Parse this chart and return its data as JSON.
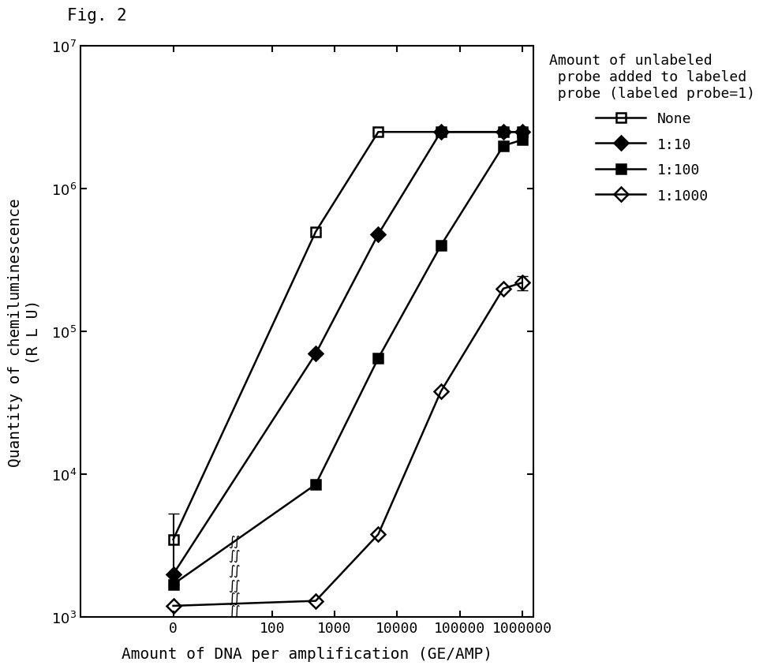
{
  "title": "Fig. 2",
  "xlabel": "Amount of DNA per amplification (GE/AMP)",
  "ylabel_line1": "Quantity of chemiluminescence",
  "ylabel_line2": "(R L U)",
  "series": [
    {
      "name": "None",
      "x": [
        0,
        500,
        5000,
        50000,
        500000,
        1000000
      ],
      "y": [
        3500,
        500000,
        2500000,
        2500000,
        2500000,
        2500000
      ],
      "yerr_lo": [
        1800,
        0,
        0,
        0,
        0,
        0
      ],
      "yerr_hi": [
        1800,
        0,
        0,
        0,
        0,
        0
      ],
      "marker": "s",
      "fillstyle": "none",
      "label": "None"
    },
    {
      "name": "1:10",
      "x": [
        0,
        500,
        5000,
        50000,
        500000,
        1000000
      ],
      "y": [
        2000,
        70000,
        480000,
        2500000,
        2500000,
        2500000
      ],
      "yerr_lo": [
        0,
        0,
        0,
        0,
        0,
        0
      ],
      "yerr_hi": [
        0,
        0,
        0,
        0,
        0,
        0
      ],
      "marker": "D",
      "fillstyle": "full",
      "label": "1:10"
    },
    {
      "name": "1:100",
      "x": [
        0,
        500,
        5000,
        50000,
        500000,
        1000000
      ],
      "y": [
        1700,
        8500,
        65000,
        400000,
        2000000,
        2200000
      ],
      "yerr_lo": [
        0,
        0,
        0,
        0,
        0,
        0
      ],
      "yerr_hi": [
        0,
        0,
        0,
        0,
        0,
        0
      ],
      "marker": "s",
      "fillstyle": "full",
      "label": "1:100"
    },
    {
      "name": "1:1000",
      "x": [
        0,
        500,
        5000,
        50000,
        500000,
        1000000
      ],
      "y": [
        1200,
        1300,
        3800,
        38000,
        200000,
        220000
      ],
      "yerr_lo": [
        0,
        0,
        0,
        0,
        0,
        25000
      ],
      "yerr_hi": [
        0,
        0,
        0,
        0,
        0,
        25000
      ],
      "marker": "D",
      "fillstyle": "none",
      "label": "1:1000"
    }
  ],
  "legend_title": "Amount of unlabeled\n probe added to labeled\n probe (labeled probe=1)",
  "color": "#000000",
  "background_color": "#ffffff",
  "ylim": [
    1000,
    10000000
  ],
  "linthresh": 5,
  "linscale": 0.25,
  "xlim_lo": -80,
  "xlim_hi": 1500000,
  "xticks": [
    0,
    100,
    1000,
    10000,
    100000,
    1000000
  ],
  "xtick_labels": [
    "0",
    "100",
    "1000",
    "10000",
    "100000",
    "1000000"
  ],
  "yticks": [
    1000,
    10000,
    100000,
    1000000,
    10000000
  ],
  "fig_width": 12.8,
  "fig_height": 8.7,
  "font_size_ticks": 13,
  "font_size_labels": 14,
  "font_size_legend": 13,
  "font_size_title": 15,
  "marker_size": 9,
  "line_width": 1.8,
  "break_x": 25,
  "break_y_vals": [
    1100,
    1350,
    1650,
    2100,
    2700,
    3400
  ]
}
